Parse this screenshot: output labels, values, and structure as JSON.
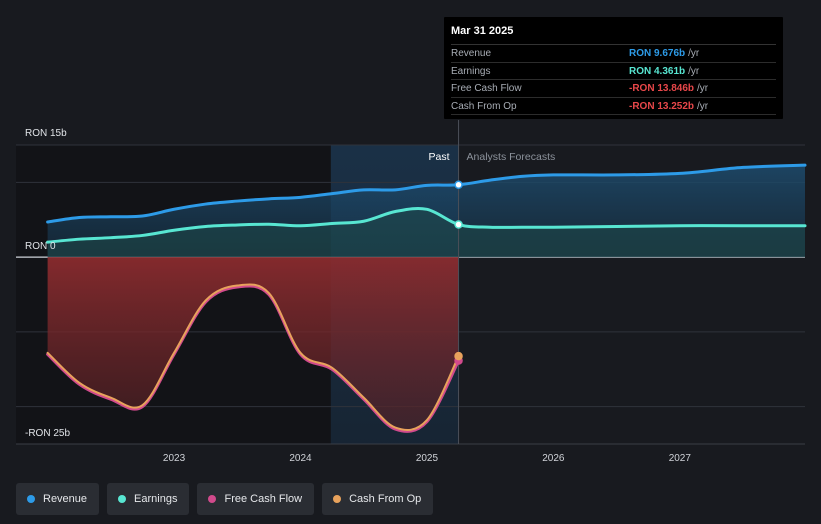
{
  "chart_data": {
    "type": "area",
    "ylabel_top": "RON 15b",
    "ylabel_zero": "RON 0",
    "ylabel_bottom": "-RON 25b",
    "ylim": [
      -25,
      15
    ],
    "grid": true,
    "past_label": "Past",
    "forecast_label": "Analysts Forecasts",
    "x_ticks": [
      "2023",
      "2024",
      "2025",
      "2026",
      "2027"
    ],
    "x_tick_values": [
      2023.0,
      2024.0,
      2025.0,
      2026.0,
      2027.0
    ],
    "xlim": [
      2021.75,
      2027.99
    ],
    "past_end": 2025.25,
    "highlight_start": 2024.24,
    "series": [
      {
        "name": "Revenue",
        "color": "#2d9be8",
        "x": [
          2022.0,
          2022.25,
          2022.5,
          2022.75,
          2023.0,
          2023.25,
          2023.5,
          2023.75,
          2024.0,
          2024.25,
          2024.5,
          2024.75,
          2025.0,
          2025.25,
          2025.5,
          2025.75,
          2026.0,
          2026.5,
          2027.0,
          2027.5,
          2027.99
        ],
        "values": [
          4.7,
          5.3,
          5.4,
          5.5,
          6.4,
          7.1,
          7.5,
          7.8,
          8.0,
          8.5,
          9.0,
          9.0,
          9.6,
          9.68,
          10.3,
          10.8,
          11.0,
          11.0,
          11.2,
          12.0,
          12.3
        ]
      },
      {
        "name": "Earnings",
        "color": "#58e6d2",
        "x": [
          2022.0,
          2022.25,
          2022.5,
          2022.75,
          2023.0,
          2023.25,
          2023.5,
          2023.75,
          2024.0,
          2024.25,
          2024.5,
          2024.75,
          2025.0,
          2025.25,
          2025.5,
          2025.75,
          2026.0,
          2026.5,
          2027.0,
          2027.5,
          2027.99
        ],
        "values": [
          2.0,
          2.4,
          2.6,
          2.9,
          3.6,
          4.1,
          4.3,
          4.4,
          4.2,
          4.5,
          4.8,
          6.1,
          6.4,
          4.36,
          4.0,
          4.0,
          4.0,
          4.1,
          4.2,
          4.2,
          4.2
        ]
      },
      {
        "name": "Free Cash Flow",
        "color": "#d14a8c",
        "x": [
          2022.0,
          2022.25,
          2022.5,
          2022.75,
          2023.0,
          2023.25,
          2023.5,
          2023.75,
          2024.0,
          2024.25,
          2024.5,
          2024.75,
          2025.0,
          2025.25
        ],
        "values": [
          -13.0,
          -17.0,
          -19.0,
          -20.0,
          -13.0,
          -6.0,
          -4.0,
          -5.0,
          -13.0,
          -15.0,
          -19.0,
          -23.0,
          -22.0,
          -13.85
        ]
      },
      {
        "name": "Cash From Op",
        "color": "#e8a25c",
        "x": [
          2022.0,
          2022.25,
          2022.5,
          2022.75,
          2023.0,
          2023.25,
          2023.5,
          2023.75,
          2024.0,
          2024.25,
          2024.5,
          2024.75,
          2025.0,
          2025.25
        ],
        "values": [
          -12.8,
          -16.8,
          -18.8,
          -19.8,
          -12.8,
          -5.8,
          -3.8,
          -4.8,
          -12.8,
          -14.8,
          -18.8,
          -22.8,
          -21.8,
          -13.25
        ]
      }
    ]
  },
  "tooltip": {
    "date": "Mar 31 2025",
    "rows": [
      {
        "label": "Revenue",
        "value": "RON 9.676b",
        "unit": "/yr",
        "color": "#2d9be8"
      },
      {
        "label": "Earnings",
        "value": "RON 4.361b",
        "unit": "/yr",
        "color": "#58e6d2"
      },
      {
        "label": "Free Cash Flow",
        "value": "-RON 13.846b",
        "unit": "/yr",
        "color": "#e8474a"
      },
      {
        "label": "Cash From Op",
        "value": "-RON 13.252b",
        "unit": "/yr",
        "color": "#e8474a"
      }
    ]
  },
  "legend": [
    {
      "label": "Revenue",
      "color": "#2d9be8"
    },
    {
      "label": "Earnings",
      "color": "#58e6d2"
    },
    {
      "label": "Free Cash Flow",
      "color": "#d14a8c"
    },
    {
      "label": "Cash From Op",
      "color": "#e8a25c"
    }
  ]
}
